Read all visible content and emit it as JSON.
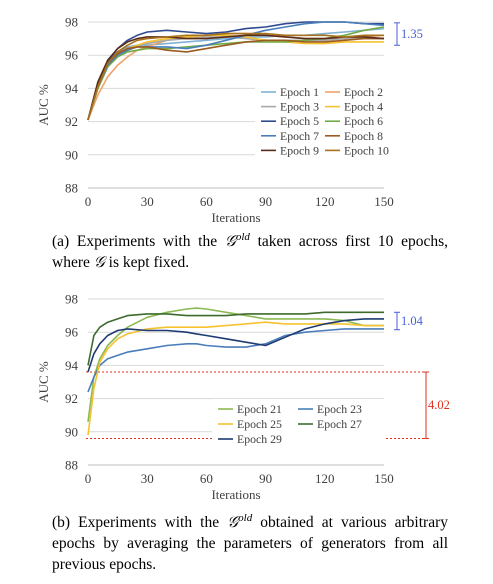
{
  "chart_data": [
    {
      "type": "line",
      "xlabel": "Iterations",
      "ylabel": "AUC %",
      "xlim": [
        0,
        150
      ],
      "ylim": [
        88,
        98
      ],
      "xticks": [
        0,
        30,
        60,
        90,
        120,
        150
      ],
      "yticks": [
        88,
        90,
        92,
        94,
        96,
        98
      ],
      "grid": "horizontal",
      "legend_position": "lower-right",
      "legend_columns": 2,
      "x": [
        0,
        5,
        10,
        15,
        20,
        25,
        30,
        40,
        50,
        60,
        70,
        80,
        90,
        100,
        110,
        120,
        130,
        140,
        150
      ],
      "series": [
        {
          "name": "Epoch 1",
          "color": "#7fb2d5",
          "values": [
            92.1,
            94.2,
            95.6,
            96.2,
            96.5,
            96.6,
            96.6,
            96.7,
            96.8,
            96.9,
            97.0,
            97.1,
            97.1,
            97.2,
            97.2,
            97.3,
            97.4,
            97.5,
            97.6
          ]
        },
        {
          "name": "Epoch 2",
          "color": "#f2a16c",
          "values": [
            92.1,
            93.6,
            94.7,
            95.4,
            95.9,
            96.3,
            96.5,
            96.9,
            97.1,
            97.2,
            97.3,
            97.3,
            97.2,
            97.1,
            97.0,
            97.0,
            97.0,
            97.1,
            97.2
          ]
        },
        {
          "name": "Epoch 3",
          "color": "#a9a9a9",
          "values": [
            92.1,
            94.3,
            95.5,
            96.1,
            96.4,
            96.6,
            96.7,
            96.9,
            97.0,
            97.1,
            97.1,
            97.0,
            96.9,
            96.9,
            96.9,
            96.9,
            97.0,
            97.0,
            97.0
          ]
        },
        {
          "name": "Epoch 4",
          "color": "#f5c231",
          "values": [
            92.1,
            94.0,
            95.3,
            96.0,
            96.4,
            96.6,
            96.8,
            97.0,
            97.1,
            97.2,
            97.2,
            97.1,
            96.9,
            96.8,
            96.7,
            96.7,
            96.8,
            96.8,
            96.8
          ]
        },
        {
          "name": "Epoch 5",
          "color": "#2e4a8f",
          "values": [
            92.1,
            94.2,
            95.6,
            96.4,
            96.9,
            97.2,
            97.4,
            97.5,
            97.4,
            97.3,
            97.4,
            97.6,
            97.7,
            97.9,
            98.0,
            98.0,
            98.0,
            97.9,
            97.9
          ]
        },
        {
          "name": "Epoch 6",
          "color": "#70ad47",
          "values": [
            92.1,
            94.0,
            95.3,
            95.9,
            96.2,
            96.3,
            96.4,
            96.4,
            96.5,
            96.6,
            96.7,
            96.8,
            96.8,
            96.8,
            96.9,
            97.0,
            97.2,
            97.5,
            97.7
          ]
        },
        {
          "name": "Epoch 7",
          "color": "#4a7ebb",
          "values": [
            92.1,
            94.1,
            95.4,
            96.0,
            96.3,
            96.5,
            96.5,
            96.5,
            96.4,
            96.6,
            96.9,
            97.2,
            97.5,
            97.7,
            97.9,
            98.0,
            98.0,
            97.9,
            97.8
          ]
        },
        {
          "name": "Epoch 8",
          "color": "#9c5b1f",
          "values": [
            92.1,
            94.3,
            95.5,
            96.1,
            96.4,
            96.5,
            96.5,
            96.3,
            96.2,
            96.4,
            96.6,
            96.8,
            96.9,
            96.9,
            96.8,
            96.8,
            96.9,
            97.0,
            97.0
          ]
        },
        {
          "name": "Epoch 9",
          "color": "#5a2d1a",
          "values": [
            92.1,
            94.4,
            95.7,
            96.4,
            96.8,
            97.0,
            97.1,
            97.1,
            97.0,
            97.0,
            97.1,
            97.2,
            97.2,
            97.1,
            97.0,
            97.0,
            97.1,
            97.1,
            97.0
          ]
        },
        {
          "name": "Epoch 10",
          "color": "#a8711c",
          "values": [
            92.1,
            94.1,
            95.5,
            96.2,
            96.6,
            96.9,
            97.0,
            97.1,
            97.2,
            97.2,
            97.3,
            97.3,
            97.3,
            97.2,
            97.2,
            97.2,
            97.1,
            97.2,
            97.2
          ]
        }
      ],
      "annotations": [
        {
          "text": "1.35",
          "color": "#4a5fd9",
          "y_range": [
            96.6,
            97.95
          ]
        }
      ]
    },
    {
      "type": "line",
      "xlabel": "Iterations",
      "ylabel": "AUC %",
      "xlim": [
        0,
        150
      ],
      "ylim": [
        88,
        98
      ],
      "xticks": [
        0,
        30,
        60,
        90,
        120,
        150
      ],
      "yticks": [
        88,
        90,
        92,
        94,
        96,
        98
      ],
      "grid": "horizontal",
      "legend_position": "lower-right",
      "legend_columns": 2,
      "x": [
        0,
        3,
        6,
        10,
        15,
        20,
        30,
        40,
        50,
        55,
        60,
        70,
        80,
        90,
        100,
        110,
        120,
        130,
        140,
        150
      ],
      "series": [
        {
          "name": "Epoch 21",
          "color": "#8bb955",
          "values": [
            90.6,
            93.3,
            94.4,
            95.2,
            95.8,
            96.3,
            96.9,
            97.2,
            97.4,
            97.45,
            97.4,
            97.2,
            97.0,
            96.8,
            96.8,
            96.8,
            96.8,
            96.7,
            96.4,
            96.4
          ]
        },
        {
          "name": "Epoch 23",
          "color": "#4a7ebb",
          "values": [
            92.4,
            93.3,
            94.0,
            94.4,
            94.6,
            94.8,
            95.0,
            95.2,
            95.3,
            95.3,
            95.2,
            95.1,
            95.1,
            95.3,
            95.8,
            96.0,
            96.1,
            96.2,
            96.2,
            96.2
          ]
        },
        {
          "name": "Epoch 25",
          "color": "#f5c231",
          "values": [
            89.8,
            92.6,
            94.2,
            95.0,
            95.6,
            95.9,
            96.2,
            96.3,
            96.3,
            96.3,
            96.3,
            96.4,
            96.5,
            96.6,
            96.5,
            96.5,
            96.5,
            96.5,
            96.4,
            96.4
          ]
        },
        {
          "name": "Epoch 27",
          "color": "#3e6b2d",
          "values": [
            94.0,
            95.8,
            96.3,
            96.6,
            96.8,
            97.0,
            97.1,
            97.1,
            97.0,
            97.0,
            97.0,
            97.0,
            97.1,
            97.1,
            97.1,
            97.1,
            97.2,
            97.2,
            97.2,
            97.2
          ]
        },
        {
          "name": "Epoch 29",
          "color": "#1f3b72",
          "values": [
            93.6,
            94.7,
            95.3,
            95.8,
            96.1,
            96.2,
            96.1,
            96.1,
            96.0,
            95.9,
            95.8,
            95.6,
            95.4,
            95.2,
            95.7,
            96.2,
            96.5,
            96.7,
            96.8,
            96.8
          ]
        }
      ],
      "annotations": [
        {
          "text": "1.04",
          "color": "#4a5fd9",
          "y_range": [
            96.15,
            97.2
          ]
        },
        {
          "text": "4.02",
          "color": "#e0301e",
          "y_range": [
            89.6,
            93.6
          ]
        }
      ]
    }
  ],
  "captions": {
    "a_before": "(a) Experiments with the ",
    "a_symbol": "𝒢",
    "a_sup": "old",
    "a_after1": " taken across first 10 epochs, where ",
    "a_symbol2": "𝒢",
    "a_after2": " is kept fixed.",
    "b_before": "(b) Experiments with the ",
    "b_symbol": "𝒢",
    "b_sup": "old",
    "b_after": " obtained at various arbitrary epochs by averaging the parameters of generators from all previous epochs."
  }
}
